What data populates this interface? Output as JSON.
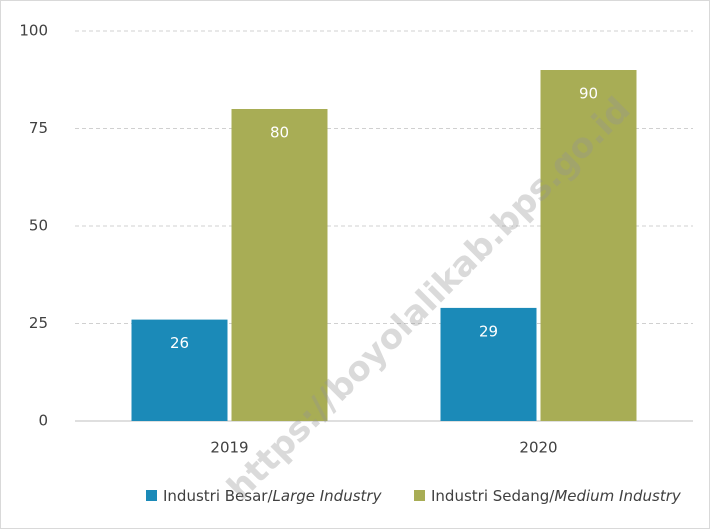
{
  "chart_data": {
    "type": "bar",
    "categories": [
      "2019",
      "2020"
    ],
    "series": [
      {
        "name": "Industri Besar/Large Industry",
        "color": "#1b8ab8",
        "values": [
          26,
          29
        ]
      },
      {
        "name": "Industri Sedang/Medium Industry",
        "color": "#a8ad55",
        "values": [
          80,
          90
        ]
      }
    ],
    "ylim": [
      0,
      100
    ],
    "yticks": [
      0,
      25,
      50,
      75,
      100
    ],
    "grid": true,
    "legend": "bottom",
    "watermark": "https://boyolalikab.bps.go.id"
  }
}
